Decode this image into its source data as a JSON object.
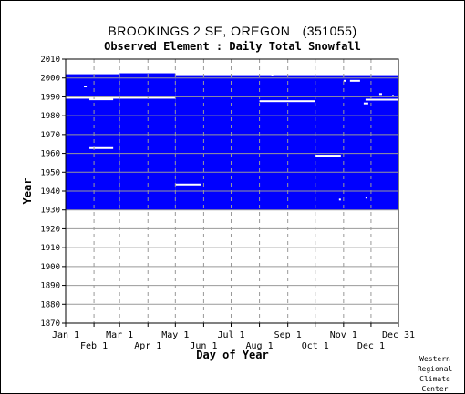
{
  "header": {
    "title": "BROOKINGS 2 SE, OREGON   (351055)",
    "subtitle": "Observed Element : Daily Total Snowfall"
  },
  "credit": [
    "Western",
    "Regional",
    "Climate",
    "Center"
  ],
  "colors": {
    "data": "#0000ff",
    "gap": "#ffffff",
    "grid": "#999999",
    "axis": "#000000"
  },
  "chart_data": {
    "type": "heatmap",
    "xlabel": "Day of Year",
    "ylabel": "Year",
    "xlim": [
      1,
      365
    ],
    "ylim": [
      1870,
      2010
    ],
    "grid": true,
    "x_ticks_top": [
      {
        "label": "Jan 1",
        "day": 1
      },
      {
        "label": "Mar 1",
        "day": 60
      },
      {
        "label": "May 1",
        "day": 121
      },
      {
        "label": "Jul 1",
        "day": 182
      },
      {
        "label": "Sep 1",
        "day": 244
      },
      {
        "label": "Nov 1",
        "day": 305
      },
      {
        "label": "Dec 31",
        "day": 365
      }
    ],
    "x_ticks_bottom": [
      {
        "label": "Feb 1",
        "day": 32
      },
      {
        "label": "Apr 1",
        "day": 91
      },
      {
        "label": "Jun 1",
        "day": 152
      },
      {
        "label": "Aug 1",
        "day": 213
      },
      {
        "label": "Oct 1",
        "day": 274
      },
      {
        "label": "Dec 1",
        "day": 335
      }
    ],
    "y_ticks": [
      1870,
      1880,
      1890,
      1900,
      1910,
      1920,
      1930,
      1940,
      1950,
      1960,
      1970,
      1980,
      1990,
      2000,
      2010
    ],
    "coverage": [
      {
        "year_start": 1930,
        "year_end": 2002,
        "day_start": 1,
        "day_end": 60
      },
      {
        "year_start": 1930,
        "year_end": 2002.5,
        "day_start": 60,
        "day_end": 121
      },
      {
        "year_start": 1930,
        "year_end": 2001.5,
        "day_start": 121,
        "day_end": 365
      }
    ],
    "missing_periods": [
      {
        "year": 1995.5,
        "day_start": 21,
        "day_end": 24
      },
      {
        "year": 1989.5,
        "day_start": 1,
        "day_end": 121
      },
      {
        "year": 1988.7,
        "day_start": 27,
        "day_end": 53
      },
      {
        "year": 1962.8,
        "day_start": 27,
        "day_end": 53
      },
      {
        "year": 1943.5,
        "day_start": 121,
        "day_end": 149
      },
      {
        "year": 1987.7,
        "day_start": 213,
        "day_end": 274
      },
      {
        "year": 1958.8,
        "day_start": 274,
        "day_end": 302
      },
      {
        "year": 1998.5,
        "day_start": 305,
        "day_end": 308
      },
      {
        "year": 1998.5,
        "day_start": 312,
        "day_end": 323
      },
      {
        "year": 1988.5,
        "day_start": 329,
        "day_end": 365
      },
      {
        "year": 1986.5,
        "day_start": 327,
        "day_end": 332
      },
      {
        "year": 1991.5,
        "day_start": 344,
        "day_end": 347
      },
      {
        "year": 1990.5,
        "day_start": 358,
        "day_end": 360
      },
      {
        "year": 1935.5,
        "day_start": 300,
        "day_end": 302
      },
      {
        "year": 1936.5,
        "day_start": 329,
        "day_end": 331
      },
      {
        "year": 2001.5,
        "day_start": 226,
        "day_end": 228
      }
    ]
  }
}
